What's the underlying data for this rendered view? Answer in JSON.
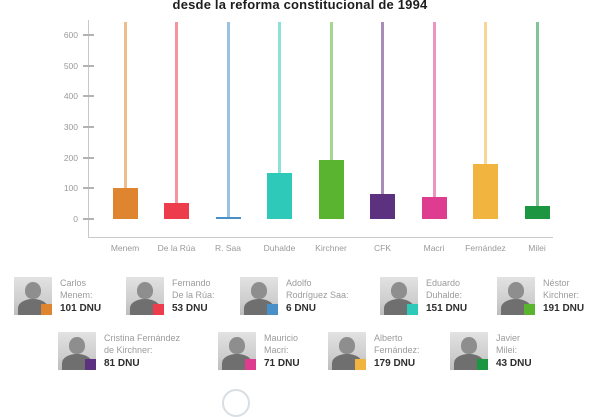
{
  "title": "desde la reforma constitucional de 1994",
  "chart_data": {
    "type": "bar",
    "title": "desde la reforma constitucional de 1994",
    "categories": [
      "Menem",
      "De la Rúa",
      "R. Saa",
      "Duhalde",
      "Kirchner",
      "CFK",
      "Macri",
      "Fernández",
      "Milei"
    ],
    "values": [
      101,
      53,
      6,
      151,
      191,
      81,
      71,
      179,
      43
    ],
    "colors": [
      "#E0852F",
      "#ED3C4C",
      "#4A90C8",
      "#2EC9B8",
      "#5BB42F",
      "#5C3180",
      "#DE3C8E",
      "#F0B43F",
      "#1D9641"
    ],
    "xlabel": "",
    "ylabel": "",
    "ylim": [
      0,
      640
    ],
    "yticks": [
      0,
      100,
      200,
      300,
      400,
      500,
      600
    ],
    "grid": false,
    "legend_position": "bottom",
    "style_note": "each bar has a thin faded stem of its color extending to the top of the plot"
  },
  "legend": {
    "unit": "DNU",
    "rows": [
      [
        {
          "name_line1": "Carlos",
          "name_line2": "Menem:",
          "value": "101 DNU",
          "color": "#E0852F"
        },
        {
          "name_line1": "Fernando",
          "name_line2": "De la Rúa:",
          "value": "53 DNU",
          "color": "#ED3C4C"
        },
        {
          "name_line1": "Adolfo",
          "name_line2": "Rodríguez Saa:",
          "value": "6 DNU",
          "color": "#4A90C8"
        },
        {
          "name_line1": "Eduardo",
          "name_line2": "Duhalde:",
          "value": "151 DNU",
          "color": "#2EC9B8"
        },
        {
          "name_line1": "Néstor",
          "name_line2": "Kirchner:",
          "value": "191 DNU",
          "color": "#5BB42F"
        }
      ],
      [
        {
          "name_line1": "Cristina Fernández",
          "name_line2": "de Kirchner:",
          "value": "81 DNU",
          "color": "#5C3180"
        },
        {
          "name_line1": "Mauricio",
          "name_line2": "Macri:",
          "value": "71 DNU",
          "color": "#DE3C8E"
        },
        {
          "name_line1": "Alberto",
          "name_line2": "Fernández:",
          "value": "179 DNU",
          "color": "#F0B43F"
        },
        {
          "name_line1": "Javier",
          "name_line2": "Milei:",
          "value": "43 DNU",
          "color": "#1D9641"
        }
      ]
    ]
  }
}
